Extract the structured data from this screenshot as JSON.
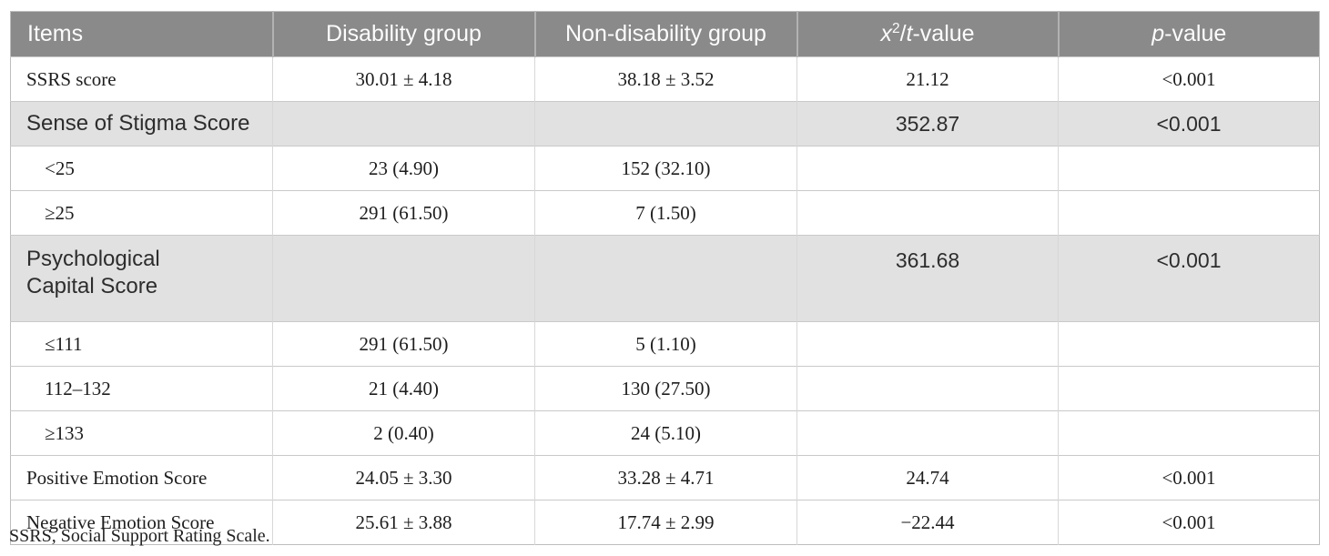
{
  "colors": {
    "header_bg": "#8a8a8a",
    "header_text": "#fcfcfc",
    "section_row_bg": "#e1e1e1",
    "body_text": "#1d1d1d",
    "grid_line": "#c9c9c9"
  },
  "table": {
    "header": {
      "items": "Items",
      "disability": "Disability group",
      "non_disability": "Non-disability group",
      "stat": {
        "x": "x",
        "exp": "2",
        "slash": "/",
        "t": "t",
        "suffix": "-value"
      },
      "p": {
        "p": "p",
        "suffix": "-value"
      }
    },
    "rows": [
      {
        "type": "data",
        "label": "SSRS score",
        "disability": "30.01 ± 4.18",
        "non_disability": "38.18 ± 3.52",
        "statistic": "21.12",
        "p": "<0.001"
      },
      {
        "type": "section",
        "label": "Sense of Stigma Score",
        "disability": "",
        "non_disability": "",
        "statistic": "352.87",
        "p": "<0.001"
      },
      {
        "type": "sub",
        "label": "<25",
        "disability": "23 (4.90)",
        "non_disability": "152 (32.10)",
        "statistic": "",
        "p": ""
      },
      {
        "type": "sub",
        "label": "≥25",
        "disability": "291 (61.50)",
        "non_disability": "7 (1.50)",
        "statistic": "",
        "p": ""
      },
      {
        "type": "section-tall",
        "label": "Psychological Capital Score",
        "disability": "",
        "non_disability": "",
        "statistic": "361.68",
        "p": "<0.001"
      },
      {
        "type": "sub",
        "label": "≤111",
        "disability": "291 (61.50)",
        "non_disability": "5 (1.10)",
        "statistic": "",
        "p": ""
      },
      {
        "type": "sub",
        "label": "112–132",
        "disability": "21 (4.40)",
        "non_disability": "130 (27.50)",
        "statistic": "",
        "p": ""
      },
      {
        "type": "sub",
        "label": "≥133",
        "disability": "2 (0.40)",
        "non_disability": "24 (5.10)",
        "statistic": "",
        "p": ""
      },
      {
        "type": "data",
        "label": "Positive Emotion Score",
        "disability": "24.05 ± 3.30",
        "non_disability": "33.28 ± 4.71",
        "statistic": "24.74",
        "p": "<0.001"
      },
      {
        "type": "data",
        "label": "Negative Emotion Score",
        "disability": "25.61 ± 3.88",
        "non_disability": "17.74 ± 2.99",
        "statistic": "−22.44",
        "p": "<0.001"
      }
    ],
    "footnote": "SSRS, Social Support Rating Scale."
  }
}
